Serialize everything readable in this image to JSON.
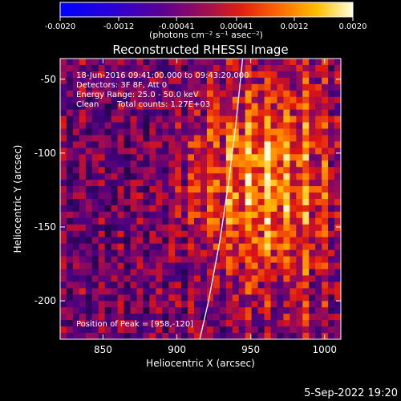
{
  "chart_data": {
    "type": "heatmap",
    "title": "Reconstructed RHESSI Image",
    "xlabel": "Heliocentric X (arcsec)",
    "ylabel": "Heliocentric Y (arcsec)",
    "xlim": [
      821,
      1011
    ],
    "ylim": [
      -226,
      -36
    ],
    "x_ticks": [
      "850",
      "900",
      "950",
      "1000"
    ],
    "x_tick_values": [
      850,
      900,
      950,
      1000
    ],
    "y_ticks": [
      "-50",
      "-100",
      "-150",
      "-200"
    ],
    "y_tick_values": [
      -50,
      -100,
      -150,
      -200
    ],
    "colorbar": {
      "range": [
        -0.002,
        0.002
      ],
      "ticks": [
        "-0.0020",
        "-0.0012",
        "-0.00041",
        "0.00041",
        "0.0012",
        "0.0020"
      ],
      "tick_values": [
        -0.002,
        -0.0012,
        -0.00041,
        0.00041,
        0.0012,
        0.002
      ],
      "units_label": "(photons cm⁻² s⁻¹ asec⁻²)"
    },
    "annotations": {
      "time_range": "18-Jun-2016 09:41:00.000 to 09:43:20.000",
      "detectors": "Detectors: 3F 8F, Att 0",
      "energy_range": "Energy Range: 25.0 - 50.0 keV",
      "clean": "Clean",
      "total_counts": "Total counts: 1.27E+03",
      "peak": "Position of Peak = [958,-120]"
    },
    "peak_position": [
      958,
      -120
    ],
    "limb_curve": {
      "x": [
        915.5,
        921.5,
        929,
        935,
        940,
        944.5
      ],
      "y": [
        -226,
        -200,
        -160,
        -120,
        -80,
        -36
      ]
    },
    "grid": false
  },
  "timestamp": "5-Sep-2022 19:20"
}
